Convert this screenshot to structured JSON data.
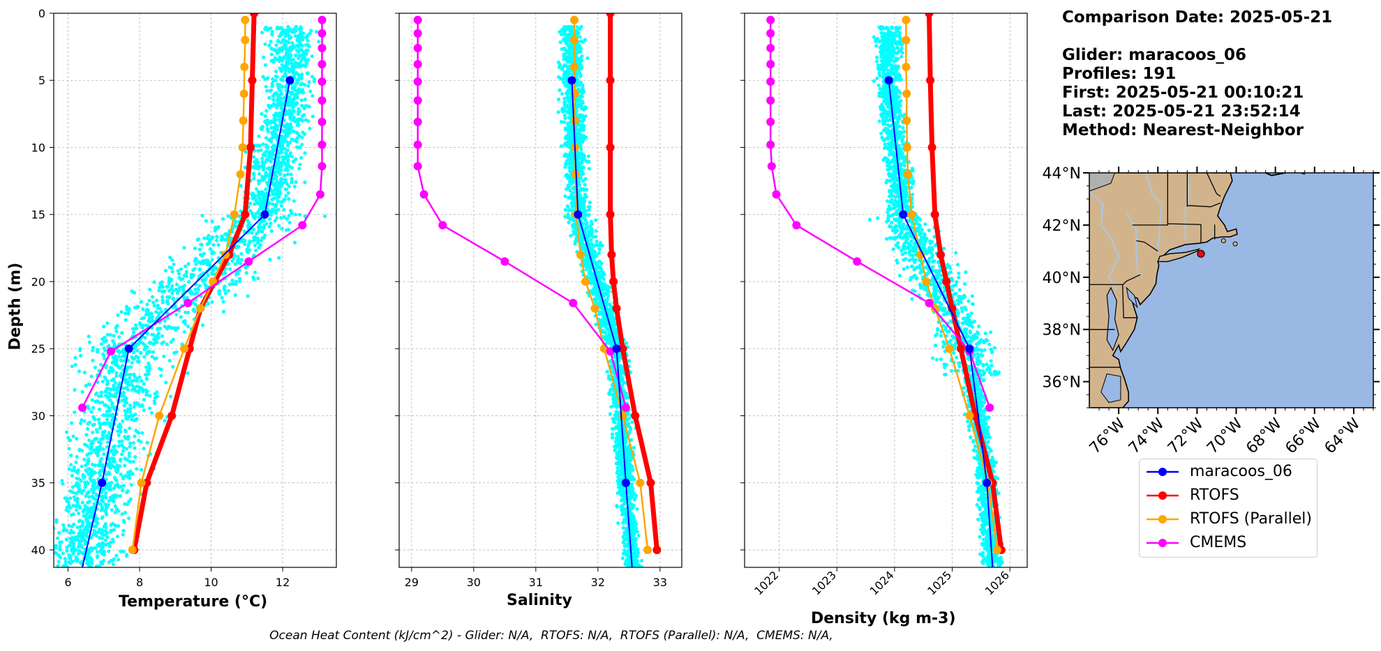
{
  "info": {
    "comparison_date": "Comparison Date: 2025-05-21",
    "glider": "Glider: maracoos_06",
    "profiles": "Profiles: 191",
    "first": "First: 2025-05-21 00:10:21",
    "last": "Last: 2025-05-21 23:52:14",
    "method": "Method: Nearest-Neighbor"
  },
  "footer": "Ocean Heat Content (kJ/cm^2) - Glider: N/A,  RTOFS: N/A,  RTOFS (Parallel): N/A,  CMEMS: N/A,",
  "colors": {
    "glider": "#0000ff",
    "rtofs": "#ff0000",
    "rtofs_parallel": "#ffa500",
    "cmems": "#ff00ff",
    "scatter": "#00ffff",
    "grid": "#b0b0b0",
    "land": "#d2b48c",
    "ocean": "#9ab8e4",
    "lakes": "#aac8e6"
  },
  "legend": [
    {
      "key": "glider",
      "label": "maracoos_06"
    },
    {
      "key": "rtofs",
      "label": "RTOFS"
    },
    {
      "key": "rtofs_parallel",
      "label": "RTOFS (Parallel)"
    },
    {
      "key": "cmems",
      "label": "CMEMS"
    }
  ],
  "chart_data": [
    {
      "type": "line",
      "xlabel": "Temperature (°C)",
      "ylabel": "Depth (m)",
      "xlim": [
        5.6,
        13.5
      ],
      "ylim": [
        41.3,
        0
      ],
      "xticks": [
        6,
        8,
        10,
        12
      ],
      "yticks": [
        0,
        5,
        10,
        15,
        20,
        25,
        30,
        35,
        40
      ],
      "grid": true,
      "series": [
        {
          "name": "maracoos_06",
          "key": "glider",
          "depth": [
            5,
            15,
            25,
            35,
            41.3
          ],
          "values": [
            12.2,
            11.5,
            7.7,
            6.95,
            6.4
          ]
        },
        {
          "name": "RTOFS",
          "key": "rtofs",
          "depth": [
            0,
            5,
            10,
            15,
            18,
            20,
            22,
            25,
            30,
            35,
            40
          ],
          "values": [
            11.2,
            11.15,
            11.1,
            10.95,
            10.5,
            10.1,
            9.7,
            9.4,
            8.9,
            8.2,
            7.85
          ]
        },
        {
          "name": "RTOFS (Parallel)",
          "key": "rtofs_parallel",
          "depth": [
            0.5,
            2,
            4,
            6,
            8,
            10,
            12,
            15,
            18,
            20,
            22,
            25,
            30,
            35,
            40
          ],
          "values": [
            10.95,
            10.95,
            10.93,
            10.92,
            10.9,
            10.88,
            10.82,
            10.65,
            10.4,
            10.05,
            9.7,
            9.25,
            8.55,
            8.05,
            7.8
          ]
        },
        {
          "name": "CMEMS",
          "key": "cmems",
          "depth": [
            0.5,
            1.5,
            2.6,
            3.8,
            5.1,
            6.5,
            8.1,
            9.8,
            11.4,
            13.5,
            15.8,
            18.5,
            21.6,
            25.2,
            29.4
          ],
          "values": [
            13.1,
            13.1,
            13.1,
            13.1,
            13.1,
            13.1,
            13.1,
            13.1,
            13.1,
            13.05,
            12.55,
            11.05,
            9.35,
            7.2,
            6.4
          ]
        }
      ]
    },
    {
      "type": "line",
      "xlabel": "Salinity",
      "xlim": [
        28.8,
        33.35
      ],
      "ylim": [
        41.3,
        0
      ],
      "xticks": [
        29,
        30,
        31,
        32,
        33
      ],
      "grid": true,
      "series": [
        {
          "name": "maracoos_06",
          "key": "glider",
          "depth": [
            5,
            15,
            25,
            35,
            41.3
          ],
          "values": [
            31.58,
            31.68,
            32.3,
            32.45,
            32.55
          ]
        },
        {
          "name": "RTOFS",
          "key": "rtofs",
          "depth": [
            0,
            5,
            10,
            15,
            18,
            20,
            22,
            25,
            30,
            35,
            40
          ],
          "values": [
            32.2,
            32.2,
            32.2,
            32.2,
            32.22,
            32.25,
            32.3,
            32.4,
            32.6,
            32.85,
            32.95
          ]
        },
        {
          "name": "RTOFS (Parallel)",
          "key": "rtofs_parallel",
          "depth": [
            0.5,
            2,
            4,
            6,
            8,
            10,
            12,
            15,
            18,
            20,
            22,
            25,
            30,
            35,
            40
          ],
          "values": [
            31.62,
            31.62,
            31.62,
            31.63,
            31.63,
            31.63,
            31.64,
            31.65,
            31.72,
            31.8,
            31.95,
            32.1,
            32.4,
            32.68,
            32.8
          ]
        },
        {
          "name": "CMEMS",
          "key": "cmems",
          "depth": [
            0.5,
            1.5,
            2.6,
            3.8,
            5.1,
            6.5,
            8.1,
            9.8,
            11.4,
            13.5,
            15.8,
            18.5,
            21.6,
            25.2,
            29.4
          ],
          "values": [
            29.1,
            29.1,
            29.1,
            29.1,
            29.1,
            29.1,
            29.1,
            29.1,
            29.1,
            29.2,
            29.5,
            30.5,
            31.6,
            32.2,
            32.45
          ]
        }
      ]
    },
    {
      "type": "line",
      "xlabel": "Density (kg m-3)",
      "xlim": [
        1021.4,
        1026.3
      ],
      "ylim": [
        41.3,
        0
      ],
      "xticks": [
        1022,
        1023,
        1024,
        1025,
        1026
      ],
      "grid": true,
      "series": [
        {
          "name": "maracoos_06",
          "key": "glider",
          "depth": [
            5,
            15,
            25,
            35,
            41.3
          ],
          "values": [
            1023.9,
            1024.15,
            1025.3,
            1025.6,
            1025.7
          ]
        },
        {
          "name": "RTOFS",
          "key": "rtofs",
          "depth": [
            0,
            5,
            10,
            15,
            18,
            20,
            22,
            25,
            30,
            35,
            40
          ],
          "values": [
            1024.6,
            1024.62,
            1024.65,
            1024.7,
            1024.8,
            1024.9,
            1025.0,
            1025.15,
            1025.4,
            1025.7,
            1025.85
          ]
        },
        {
          "name": "RTOFS (Parallel)",
          "key": "rtofs_parallel",
          "depth": [
            0.5,
            2,
            4,
            6,
            8,
            10,
            12,
            15,
            18,
            20,
            22,
            25,
            30,
            35,
            40
          ],
          "values": [
            1024.2,
            1024.2,
            1024.2,
            1024.21,
            1024.21,
            1024.22,
            1024.23,
            1024.3,
            1024.45,
            1024.55,
            1024.7,
            1024.95,
            1025.3,
            1025.62,
            1025.78
          ]
        },
        {
          "name": "CMEMS",
          "key": "cmems",
          "depth": [
            0.5,
            1.5,
            2.6,
            3.8,
            5.1,
            6.5,
            8.1,
            9.8,
            11.4,
            13.5,
            15.8,
            18.5,
            21.6,
            25.2,
            29.4
          ],
          "values": [
            1021.85,
            1021.85,
            1021.85,
            1021.85,
            1021.85,
            1021.85,
            1021.85,
            1021.85,
            1021.87,
            1021.95,
            1022.3,
            1023.35,
            1024.6,
            1025.3,
            1025.65
          ]
        }
      ]
    },
    {
      "type": "map",
      "lon_range": [
        -77.5,
        -63
      ],
      "lat_range": [
        35,
        44
      ],
      "lon_ticks": [
        "76°W",
        "74°W",
        "72°W",
        "70°W",
        "68°W",
        "66°W",
        "64°W"
      ],
      "lon_tick_values": [
        -76,
        -74,
        -72,
        -70,
        -68,
        -66,
        -64
      ],
      "lat_ticks": [
        "36°N",
        "38°N",
        "40°N",
        "42°N",
        "44°N"
      ],
      "lat_tick_values": [
        36,
        38,
        40,
        42,
        44
      ],
      "glider_location": [
        -71.8,
        40.9
      ]
    }
  ]
}
